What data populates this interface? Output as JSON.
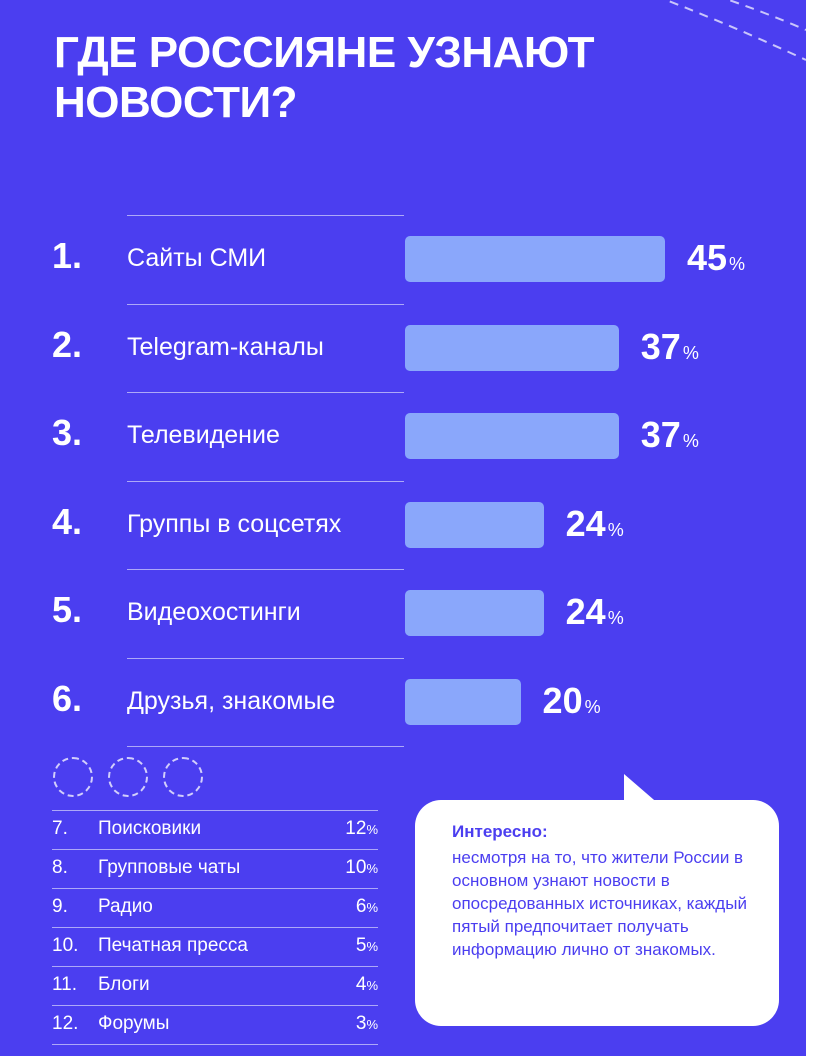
{
  "title": "ГДЕ РОССИЯНЕ УЗНАЮТ НОВОСТИ?",
  "colors": {
    "background": "#4b3ef0",
    "bar": "#8aa7fb",
    "text": "#ffffff",
    "bubble": "#ffffff"
  },
  "chart_data": {
    "type": "bar",
    "orientation": "horizontal",
    "unit": "%",
    "categories": [
      "Сайты СМИ",
      "Telegram-каналы",
      "Телевидение",
      "Группы в соцсетях",
      "Видеохостинги",
      "Друзья, знакомые"
    ],
    "ranks": [
      "1.",
      "2.",
      "3.",
      "4.",
      "5.",
      "6."
    ],
    "values": [
      45,
      37,
      37,
      24,
      24,
      20
    ]
  },
  "other_sources": [
    {
      "rank": "7.",
      "label": "Поисковики",
      "value": "12",
      "unit": "%"
    },
    {
      "rank": "8.",
      "label": "Групповые чаты",
      "value": "10",
      "unit": "%"
    },
    {
      "rank": "9.",
      "label": "Радио",
      "value": "6",
      "unit": "%"
    },
    {
      "rank": "10.",
      "label": "Печатная пресса",
      "value": "5",
      "unit": "%"
    },
    {
      "rank": "11.",
      "label": "Блоги",
      "value": "4",
      "unit": "%"
    },
    {
      "rank": "12.",
      "label": "Форумы",
      "value": "3",
      "unit": "%"
    }
  ],
  "callout": {
    "heading": "Интересно:",
    "text": "несмотря на то, что жители России в основном узнают новости в опосредованных источниках, каждый пятый предпочитает получать информацию лично от знакомых."
  }
}
